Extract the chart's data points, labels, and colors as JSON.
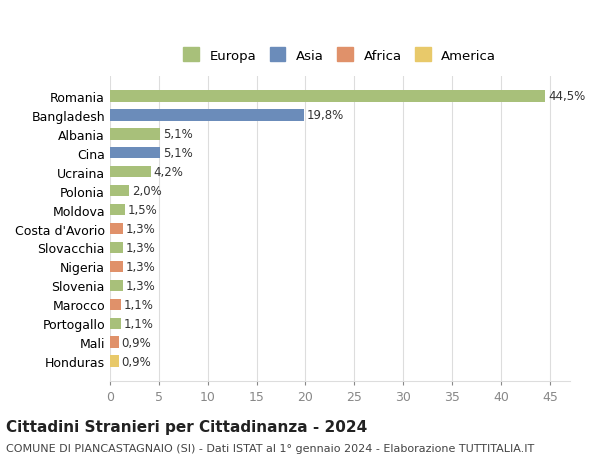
{
  "countries": [
    "Romania",
    "Bangladesh",
    "Albania",
    "Cina",
    "Ucraina",
    "Polonia",
    "Moldova",
    "Costa d'Avorio",
    "Slovacchia",
    "Nigeria",
    "Slovenia",
    "Marocco",
    "Portogallo",
    "Mali",
    "Honduras"
  ],
  "values": [
    44.5,
    19.8,
    5.1,
    5.1,
    4.2,
    2.0,
    1.5,
    1.3,
    1.3,
    1.3,
    1.3,
    1.1,
    1.1,
    0.9,
    0.9
  ],
  "labels": [
    "44,5%",
    "19,8%",
    "5,1%",
    "5,1%",
    "4,2%",
    "2,0%",
    "1,5%",
    "1,3%",
    "1,3%",
    "1,3%",
    "1,3%",
    "1,1%",
    "1,1%",
    "0,9%",
    "0,9%"
  ],
  "continents": [
    "Europa",
    "Asia",
    "Europa",
    "Asia",
    "Europa",
    "Europa",
    "Europa",
    "Africa",
    "Europa",
    "Africa",
    "Europa",
    "Africa",
    "Europa",
    "Africa",
    "America"
  ],
  "continent_colors": {
    "Europa": "#a8c07a",
    "Asia": "#6b8cba",
    "Africa": "#e0916a",
    "America": "#e8c96a"
  },
  "legend_order": [
    "Europa",
    "Asia",
    "Africa",
    "America"
  ],
  "title": "Cittadini Stranieri per Cittadinanza - 2024",
  "subtitle": "COMUNE DI PIANCASTAGNAIO (SI) - Dati ISTAT al 1° gennaio 2024 - Elaborazione TUTTITALIA.IT",
  "xlabel": "",
  "xlim": [
    0,
    47
  ],
  "xticks": [
    0,
    5,
    10,
    15,
    20,
    25,
    30,
    35,
    40,
    45
  ],
  "background_color": "#ffffff",
  "grid_color": "#dddddd",
  "bar_height": 0.6,
  "title_fontsize": 11,
  "subtitle_fontsize": 8,
  "tick_fontsize": 9,
  "label_fontsize": 8.5
}
